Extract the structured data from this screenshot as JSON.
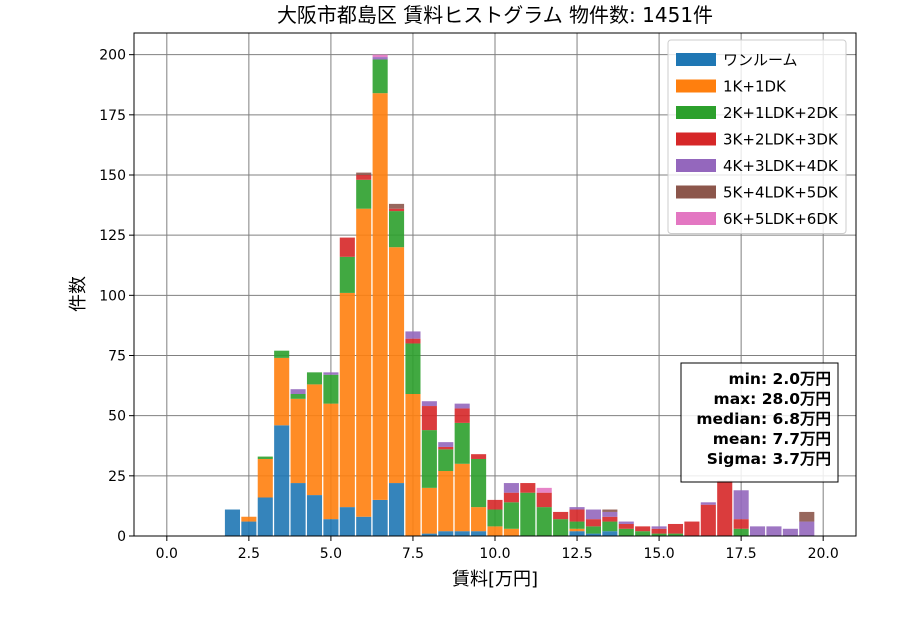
{
  "chart_data": {
    "type": "bar",
    "stacked": true,
    "title": "大阪市都島区 賃料ヒストグラム  物件数: 1451件",
    "xlabel": "賃料[万円]",
    "ylabel": "件数",
    "xlim": [
      -1.0,
      21.0
    ],
    "ylim": [
      0,
      209
    ],
    "xticks": [
      0.0,
      2.5,
      5.0,
      7.5,
      10.0,
      12.5,
      15.0,
      17.5,
      20.0
    ],
    "xtick_labels": [
      "0.0",
      "2.5",
      "5.0",
      "7.5",
      "10.0",
      "12.5",
      "15.0",
      "17.5",
      "20.0"
    ],
    "yticks": [
      0,
      25,
      50,
      75,
      100,
      125,
      150,
      175,
      200
    ],
    "ytick_labels": [
      "0",
      "25",
      "50",
      "75",
      "100",
      "125",
      "150",
      "175",
      "200"
    ],
    "grid": true,
    "legend_position": "top-right",
    "bin_width": 0.5,
    "bar_fill_fraction": 0.92,
    "x": [
      2.0,
      2.5,
      3.0,
      3.5,
      4.0,
      4.5,
      5.0,
      5.5,
      6.0,
      6.5,
      7.0,
      7.5,
      8.0,
      8.5,
      9.0,
      9.5,
      10.0,
      10.5,
      11.0,
      11.5,
      12.0,
      12.5,
      13.0,
      13.5,
      14.0,
      14.5,
      15.0,
      15.5,
      16.0,
      16.5,
      17.0,
      17.5,
      18.0,
      18.5,
      19.0,
      19.5
    ],
    "series": [
      {
        "name": "ワンルーム",
        "color": "#1f77b4",
        "values": [
          11,
          6,
          16,
          46,
          22,
          17,
          7,
          12,
          8,
          15,
          22,
          0,
          1,
          2,
          2,
          2,
          0,
          0,
          0,
          0,
          0,
          2,
          1,
          2,
          0,
          0,
          0,
          0,
          0,
          0,
          0,
          0,
          0,
          0,
          0,
          0
        ]
      },
      {
        "name": "1K+1DK",
        "color": "#ff7f0e",
        "values": [
          0,
          2,
          16,
          28,
          35,
          46,
          48,
          89,
          128,
          169,
          98,
          59,
          19,
          25,
          28,
          10,
          4,
          3,
          0,
          0,
          0,
          1,
          0,
          0,
          0,
          0,
          0,
          0,
          0,
          0,
          0,
          0,
          0,
          0,
          0,
          0
        ]
      },
      {
        "name": "2K+1LDK+2DK",
        "color": "#2ca02c",
        "values": [
          0,
          0,
          1,
          3,
          2,
          5,
          12,
          15,
          12,
          14,
          15,
          21,
          24,
          9,
          17,
          20,
          7,
          11,
          18,
          12,
          7,
          3,
          3,
          4,
          3,
          2,
          1,
          1,
          0,
          0,
          0,
          3,
          0,
          0,
          0,
          0
        ]
      },
      {
        "name": "3K+2LDK+3DK",
        "color": "#d62728",
        "values": [
          0,
          0,
          0,
          0,
          0,
          0,
          0,
          8,
          2,
          0,
          1,
          2,
          10,
          1,
          6,
          2,
          4,
          4,
          4,
          6,
          3,
          5,
          3,
          2,
          2,
          2,
          2,
          4,
          6,
          13,
          23,
          4,
          0,
          0,
          0,
          0
        ]
      },
      {
        "name": "4K+3LDK+4DK",
        "color": "#9467bd",
        "values": [
          0,
          0,
          0,
          0,
          2,
          0,
          1,
          0,
          0,
          1,
          0,
          3,
          2,
          2,
          2,
          0,
          0,
          4,
          0,
          0,
          0,
          1,
          4,
          2,
          1,
          0,
          1,
          0,
          0,
          1,
          0,
          12,
          4,
          4,
          3,
          6
        ]
      },
      {
        "name": "5K+4LDK+5DK",
        "color": "#8c564b",
        "values": [
          0,
          0,
          0,
          0,
          0,
          0,
          0,
          0,
          1,
          0,
          2,
          0,
          0,
          0,
          0,
          0,
          0,
          0,
          0,
          0,
          0,
          0,
          0,
          1,
          0,
          0,
          0,
          0,
          0,
          0,
          0,
          0,
          0,
          0,
          0,
          4
        ]
      },
      {
        "name": "6K+5LDK+6DK",
        "color": "#e377c2",
        "values": [
          0,
          0,
          0,
          0,
          0,
          0,
          0,
          0,
          0,
          1,
          0,
          0,
          0,
          0,
          0,
          0,
          0,
          0,
          0,
          2,
          0,
          0,
          0,
          0,
          0,
          0,
          0,
          0,
          0,
          0,
          0,
          0,
          0,
          0,
          0,
          0
        ]
      }
    ],
    "stats": {
      "lines": [
        "min: 2.0万円",
        "max: 28.0万円",
        "median: 6.8万円",
        "mean: 7.7万円",
        "Sigma: 3.7万円"
      ],
      "position": "bottom-right"
    }
  }
}
